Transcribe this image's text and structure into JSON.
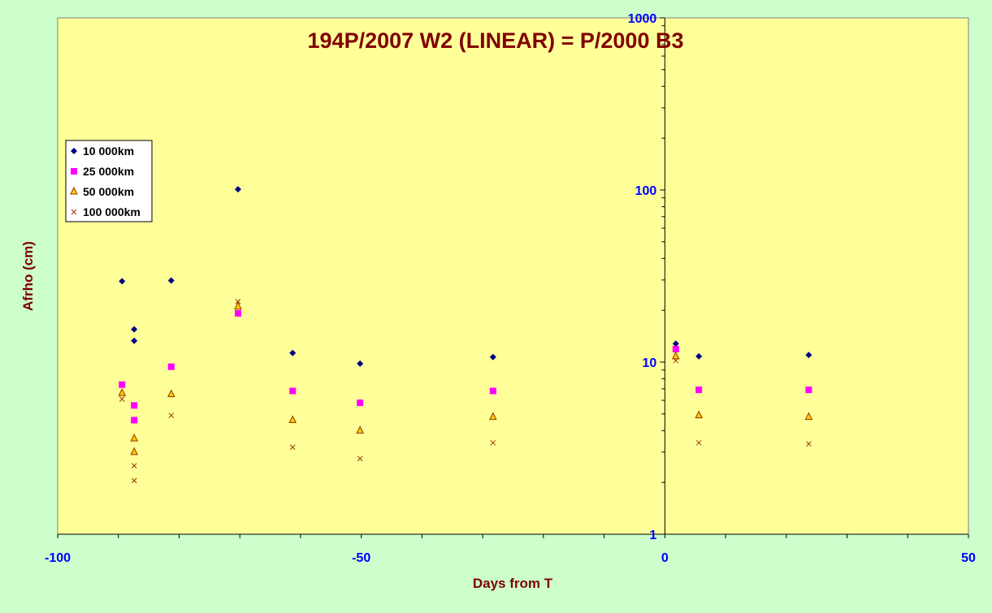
{
  "colors": {
    "background": "#ccffcc",
    "plot_area": "#ffff99",
    "title": "#800000",
    "axis_label": "#800000",
    "tick_label": "#0000ff",
    "axis_line": "#000000"
  },
  "chart_data": {
    "type": "scatter",
    "title": "194P/2007 W2 (LINEAR) = P/2000 B3",
    "xlabel": "Days from T",
    "ylabel": "Afrho (cm)",
    "xlim": [
      -100,
      50
    ],
    "ylim": [
      1,
      1000
    ],
    "y_scale": "log",
    "x_ticks": [
      -100,
      -50,
      0,
      50
    ],
    "x_tick_labels": [
      "-100",
      "-50",
      "0",
      "50"
    ],
    "y_ticks": [
      1,
      10,
      100,
      1000
    ],
    "y_tick_labels": [
      "1",
      "10",
      "100",
      "1000"
    ],
    "y_axis_position": "x=0",
    "grid": false,
    "legend_position": "top-left",
    "series": [
      {
        "name": "10 000km",
        "marker": "diamond",
        "color": "#000080",
        "points": [
          [
            -89.4,
            29.5
          ],
          [
            -87.4,
            15.5
          ],
          [
            -87.4,
            13.3
          ],
          [
            -81.3,
            29.8
          ],
          [
            -70.3,
            101
          ],
          [
            -61.3,
            11.3
          ],
          [
            -50.2,
            9.8
          ],
          [
            -28.3,
            10.7
          ],
          [
            1.8,
            12.8
          ],
          [
            5.6,
            10.8
          ],
          [
            23.7,
            11.0
          ]
        ]
      },
      {
        "name": "25 000km",
        "marker": "square",
        "color": "#ff00ff",
        "points": [
          [
            -89.4,
            7.4
          ],
          [
            -87.4,
            5.6
          ],
          [
            -87.4,
            4.6
          ],
          [
            -81.3,
            9.4
          ],
          [
            -70.3,
            19.2
          ],
          [
            -61.3,
            6.8
          ],
          [
            -50.2,
            5.8
          ],
          [
            -28.3,
            6.8
          ],
          [
            1.8,
            11.9
          ],
          [
            5.6,
            6.9
          ],
          [
            23.7,
            6.9
          ]
        ]
      },
      {
        "name": "50 000km",
        "marker": "triangle",
        "color": "#ffcc00",
        "stroke": "#993300",
        "points": [
          [
            -89.4,
            6.6
          ],
          [
            -87.4,
            3.6
          ],
          [
            -87.4,
            3.0
          ],
          [
            -81.3,
            6.5
          ],
          [
            -70.3,
            21.0
          ],
          [
            -61.3,
            4.6
          ],
          [
            -50.2,
            4.0
          ],
          [
            -28.3,
            4.8
          ],
          [
            1.8,
            10.8
          ],
          [
            5.6,
            4.9
          ],
          [
            23.7,
            4.8
          ]
        ]
      },
      {
        "name": "100 000km",
        "marker": "x",
        "color": "#993300",
        "points": [
          [
            -89.4,
            6.1
          ],
          [
            -87.4,
            2.5
          ],
          [
            -87.4,
            2.05
          ],
          [
            -81.3,
            4.9
          ],
          [
            -70.3,
            22.5
          ],
          [
            -61.3,
            3.2
          ],
          [
            -50.2,
            2.75
          ],
          [
            -28.3,
            3.4
          ],
          [
            1.8,
            10.2
          ],
          [
            5.6,
            3.4
          ],
          [
            23.7,
            3.35
          ]
        ]
      }
    ]
  }
}
